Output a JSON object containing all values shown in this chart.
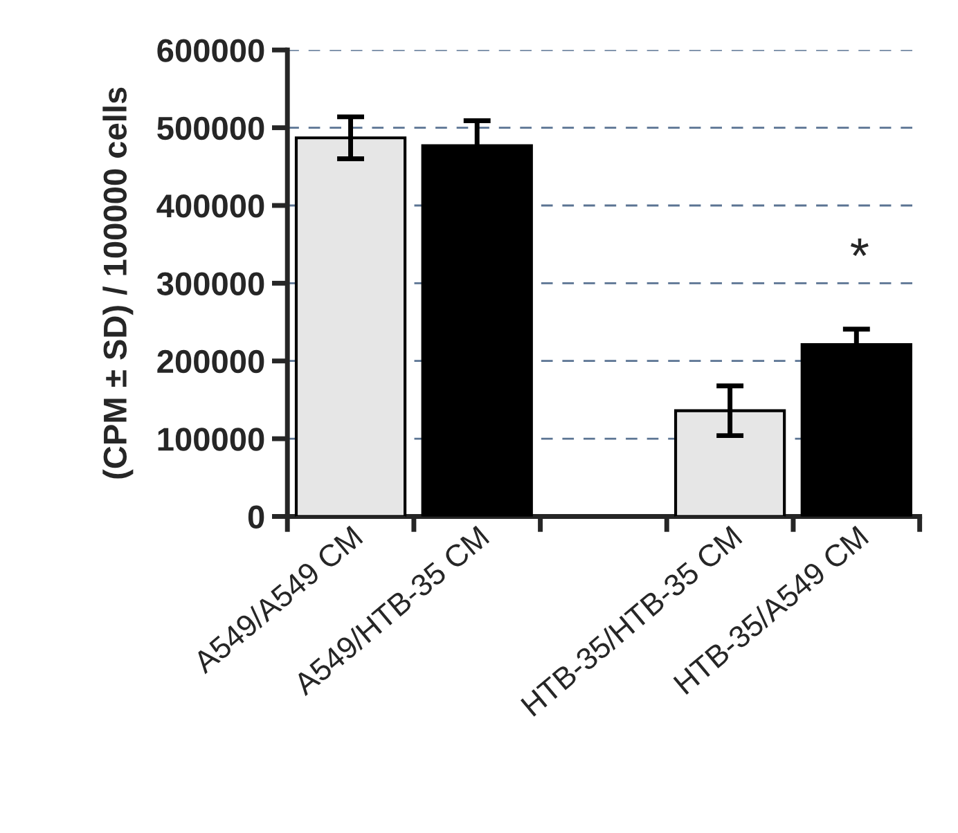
{
  "chart_data": {
    "type": "bar",
    "ylabel": "(CPM ± SD) / 100000 cells",
    "categories": [
      "A549/A549 CM",
      "A549/HTB-35 CM",
      null,
      "HTB-35/HTB-35 CM",
      "HTB-35/A549 CM"
    ],
    "values": [
      487000,
      477000,
      null,
      136000,
      221000
    ],
    "errors": [
      27000,
      32000,
      null,
      32000,
      20000
    ],
    "colors": [
      "#e6e6e6",
      "#000000",
      null,
      "#e6e6e6",
      "#000000"
    ],
    "ylim": [
      0,
      600000
    ],
    "yticks": [
      0,
      100000,
      200000,
      300000,
      400000,
      500000,
      600000
    ],
    "grid": "y",
    "annotations": [
      "*"
    ]
  }
}
